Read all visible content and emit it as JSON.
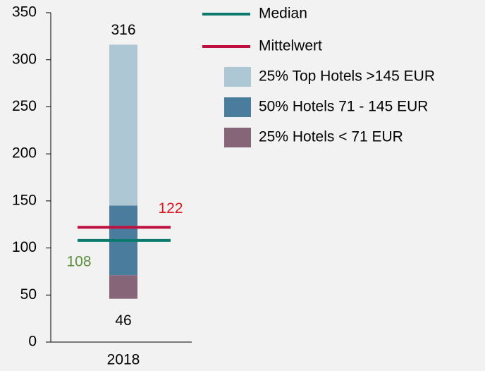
{
  "chart_data": {
    "type": "bar",
    "categories": [
      "2018"
    ],
    "series": [
      {
        "name": "Median",
        "color": "#0b7a6c",
        "kind": "line",
        "values": [
          108
        ],
        "label_color": "#5a8f3a"
      },
      {
        "name": "Mittelwert",
        "color": "#c0103f",
        "kind": "line",
        "values": [
          122
        ],
        "label_color": "#e8141e"
      },
      {
        "name": "25% Top Hotels >145 EUR",
        "color": "#adc7d5",
        "kind": "range",
        "low": [
          145
        ],
        "high": [
          316
        ]
      },
      {
        "name": "50% Hotels 71 - 145 EUR",
        "color": "#4a7d9d",
        "kind": "range",
        "low": [
          71
        ],
        "high": [
          145
        ]
      },
      {
        "name": "25% Hotels < 71 EUR",
        "color": "#866578",
        "kind": "range",
        "low": [
          46
        ],
        "high": [
          71
        ]
      }
    ],
    "ylim": [
      0,
      350
    ],
    "yticks": [
      0,
      50,
      100,
      150,
      200,
      250,
      300,
      350
    ]
  }
}
